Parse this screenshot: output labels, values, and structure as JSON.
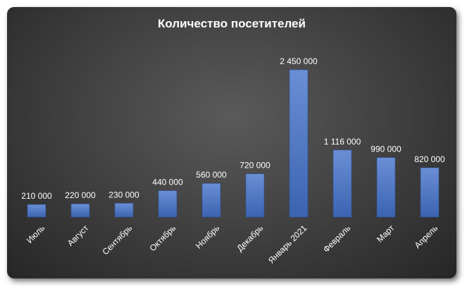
{
  "chart_data": {
    "type": "bar",
    "title": "Количество посетителей",
    "categories": [
      "Июль",
      "Август",
      "Сентябрь",
      "Октябрь",
      "Ноябрь",
      "Декабрь",
      "Январь 2021",
      "Февраль",
      "Март",
      "Апрель"
    ],
    "values": [
      210000,
      220000,
      230000,
      440000,
      560000,
      720000,
      2450000,
      1116000,
      990000,
      820000
    ],
    "value_labels": [
      "210 000",
      "220 000",
      "230 000",
      "440 000",
      "560 000",
      "720 000",
      "2 450 000",
      "1 116 000",
      "990 000",
      "820 000"
    ],
    "xlabel": "",
    "ylabel": "",
    "ylim": [
      0,
      2450000
    ],
    "grid": false,
    "legend": "none",
    "bar_color": "#4472c4",
    "background": "#3a3a3a",
    "text_color": "#ffffff"
  }
}
